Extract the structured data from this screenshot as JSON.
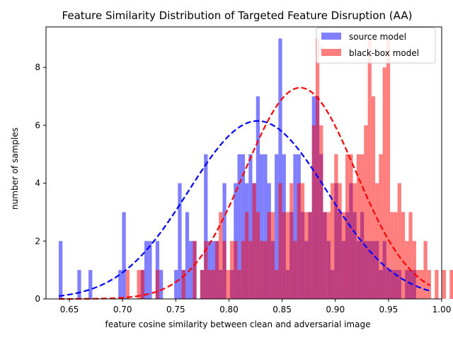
{
  "chart_data": {
    "type": "histogram",
    "title": "Feature Similarity Distribution of Targeted Feature Disruption (AA)",
    "xlabel": "feature cosine similarity between clean and adversarial image",
    "ylabel": "number of samples",
    "xlim": [
      0.628,
      1.0
    ],
    "ylim": [
      0,
      9.4
    ],
    "xticks": [
      0.65,
      0.7,
      0.75,
      0.8,
      0.85,
      0.9,
      0.95,
      1.0
    ],
    "xtick_labels": [
      "0.65",
      "0.70",
      "0.75",
      "0.80",
      "0.85",
      "0.90",
      "0.95",
      "1.00"
    ],
    "yticks": [
      0,
      2,
      4,
      6,
      8
    ],
    "ytick_labels": [
      "0",
      "2",
      "4",
      "6",
      "8"
    ],
    "legend_position": "upper-right",
    "series": [
      {
        "name": "source model",
        "color": "#0000ff",
        "alpha": 0.5,
        "bin_start": 0.64,
        "bin_width": 0.0035,
        "counts": [
          2,
          0,
          0,
          0,
          0,
          1,
          0,
          0,
          1,
          0,
          0,
          0,
          0,
          0,
          0,
          0,
          1,
          3,
          0,
          0,
          0,
          0,
          1,
          2,
          2,
          0,
          2,
          1,
          0,
          0,
          0,
          1,
          4,
          1,
          3,
          2,
          2,
          0,
          1,
          5,
          2,
          2,
          2,
          1,
          4,
          0,
          1,
          4,
          5,
          5,
          4,
          5,
          4,
          7,
          5,
          5,
          4,
          2,
          5,
          9,
          5,
          1,
          3,
          5,
          5,
          3,
          2,
          3,
          7,
          7,
          5,
          3,
          2,
          1,
          4,
          3,
          2,
          3,
          4,
          3,
          2,
          3,
          2,
          2,
          2,
          2,
          1,
          2,
          1,
          1,
          1,
          1,
          0,
          1,
          1,
          1,
          0,
          0,
          0,
          0,
          0,
          0,
          0,
          0,
          0,
          0,
          0,
          0,
          0,
          0,
          0,
          0
        ]
      },
      {
        "name": "black-box model",
        "color": "#ff0000",
        "alpha": 0.5,
        "bin_start": 0.64,
        "bin_width": 0.0035,
        "counts": [
          0,
          0,
          0,
          0,
          0,
          0,
          0,
          0,
          0,
          0,
          0,
          0,
          0,
          0,
          0,
          0,
          0,
          0,
          1,
          0,
          0,
          1,
          1,
          0,
          0,
          0,
          1,
          0,
          0,
          0,
          0,
          0,
          0,
          1,
          0,
          0,
          2,
          0,
          1,
          2,
          1,
          1,
          2,
          3,
          2,
          1,
          2,
          2,
          1,
          2,
          3,
          2,
          4,
          3,
          2,
          2,
          3,
          3,
          1,
          4,
          3,
          3,
          4,
          2,
          4,
          4,
          3,
          3,
          6,
          9,
          6,
          3,
          3,
          4,
          5,
          4,
          3,
          5,
          5,
          4,
          5,
          5,
          6,
          9,
          7,
          4,
          5,
          8,
          9,
          3,
          3,
          4,
          3,
          2,
          3,
          2,
          1,
          1,
          2,
          1,
          0,
          1,
          0,
          1,
          0,
          1,
          0,
          2,
          0,
          0,
          0,
          0,
          0,
          0
        ]
      }
    ],
    "fit_curves": [
      {
        "series": "source model",
        "color": "#0000ff",
        "style": "dashed",
        "mean": 0.827,
        "std": 0.065,
        "peak": 6.15,
        "x_range": [
          0.64,
          0.989
        ]
      },
      {
        "series": "black-box model",
        "color": "#ff0000",
        "style": "dashed",
        "mean": 0.867,
        "std": 0.052,
        "peak": 7.3,
        "x_range": [
          0.64,
          0.989
        ]
      }
    ]
  }
}
